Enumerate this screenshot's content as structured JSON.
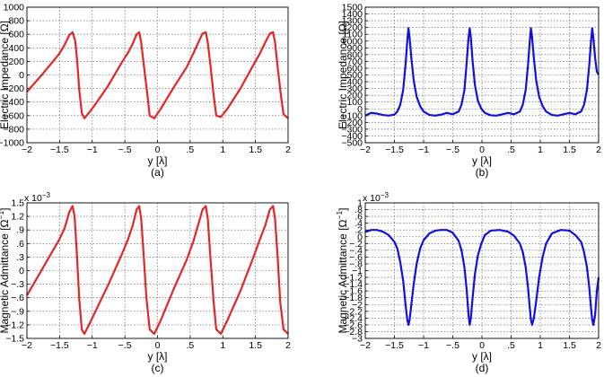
{
  "chart_data": [
    {
      "id": "a",
      "type": "line",
      "caption": "(a)",
      "xlabel": "y [λ]",
      "ylabel": "Electric Impedance [Ω]",
      "ylabel_sup": "",
      "multiplier": "",
      "xlim": [
        -2,
        2
      ],
      "ylim": [
        -1000,
        1000
      ],
      "xticks": [
        -2,
        -1.5,
        -1,
        -0.5,
        0,
        0.5,
        1,
        1.5,
        2
      ],
      "yticks": [
        -1000,
        -800,
        -600,
        -400,
        -200,
        0,
        200,
        400,
        600,
        800,
        1000
      ],
      "grid": true,
      "series": [
        {
          "color": "#e32626",
          "x": [
            -2,
            -1.8,
            -1.6,
            -1.5,
            -1.42,
            -1.35,
            -1.3,
            -1.26,
            -1.23,
            -1.2,
            -1.16,
            -1.12,
            -1.05,
            -0.95,
            -0.75,
            -0.55,
            -0.45,
            -0.38,
            -0.32,
            -0.28,
            -0.25,
            -0.21,
            -0.16,
            -0.12,
            -0.05,
            0.05,
            0.25,
            0.45,
            0.55,
            0.62,
            0.69,
            0.74,
            0.77,
            0.81,
            0.86,
            0.9,
            0.97,
            1.07,
            1.27,
            1.47,
            1.57,
            1.65,
            1.72,
            1.77,
            1.8,
            1.84,
            1.89,
            1.93,
            2
          ],
          "y": [
            -250,
            -30,
            200,
            320,
            450,
            590,
            630,
            500,
            200,
            -200,
            -560,
            -640,
            -560,
            -430,
            -150,
            180,
            330,
            460,
            600,
            630,
            480,
            150,
            -250,
            -600,
            -640,
            -500,
            -180,
            120,
            320,
            470,
            610,
            630,
            480,
            150,
            -300,
            -600,
            -620,
            -500,
            -200,
            150,
            320,
            480,
            610,
            630,
            480,
            120,
            -300,
            -580,
            -640
          ]
        }
      ]
    },
    {
      "id": "b",
      "type": "line",
      "caption": "(b)",
      "xlabel": "y [λ]",
      "ylabel": "Electric Impedance [Ω]",
      "ylabel_sup": "",
      "multiplier": "",
      "xlim": [
        -2,
        2
      ],
      "ylim": [
        -500,
        1500
      ],
      "xticks": [
        -2,
        -1.5,
        -1,
        -0.5,
        0,
        0.5,
        1,
        1.5,
        2
      ],
      "yticks": [
        -500,
        -400,
        -300,
        -200,
        -100,
        0,
        100,
        200,
        300,
        400,
        500,
        600,
        700,
        800,
        900,
        1000,
        1100,
        1200,
        1300,
        1400,
        1500
      ],
      "grid": true,
      "series": [
        {
          "color": "#1010e0",
          "x": [
            -2,
            -1.9,
            -1.8,
            -1.7,
            -1.6,
            -1.5,
            -1.45,
            -1.4,
            -1.35,
            -1.31,
            -1.28,
            -1.26,
            -1.24,
            -1.21,
            -1.17,
            -1.12,
            -1.06,
            -1.0,
            -0.9,
            -0.8,
            -0.7,
            -0.6,
            -0.5,
            -0.4,
            -0.35,
            -0.3,
            -0.26,
            -0.23,
            -0.21,
            -0.19,
            -0.16,
            -0.12,
            -0.07,
            -0.01,
            0.05,
            0.15,
            0.25,
            0.35,
            0.45,
            0.55,
            0.65,
            0.7,
            0.75,
            0.79,
            0.82,
            0.84,
            0.86,
            0.89,
            0.93,
            0.98,
            1.04,
            1.1,
            1.2,
            1.3,
            1.4,
            1.5,
            1.6,
            1.7,
            1.75,
            1.8,
            1.84,
            1.87,
            1.89,
            1.91,
            1.94,
            1.97,
            2
          ],
          "y": [
            -100,
            -60,
            -70,
            -90,
            -100,
            -85,
            -40,
            60,
            280,
            650,
            1000,
            1190,
            1050,
            750,
            420,
            180,
            40,
            -40,
            -90,
            -100,
            -85,
            -60,
            -80,
            -40,
            60,
            280,
            700,
            1050,
            1190,
            1050,
            700,
            350,
            120,
            0,
            -60,
            -95,
            -100,
            -80,
            -60,
            -80,
            -40,
            60,
            280,
            650,
            1000,
            1190,
            1050,
            750,
            420,
            180,
            40,
            -40,
            -90,
            -100,
            -80,
            -60,
            -80,
            -40,
            60,
            280,
            650,
            1000,
            1190,
            1050,
            750,
            550,
            500
          ]
        }
      ]
    },
    {
      "id": "c",
      "type": "line",
      "caption": "(c)",
      "xlabel": "y [λ]",
      "ylabel": "Magnetic Admittance [Ω",
      "ylabel_sup": "−1",
      "ylabel_end": "]",
      "multiplier": "x 10",
      "multiplier_exp": "-3",
      "xlim": [
        -2,
        2
      ],
      "ylim": [
        -1.5,
        1.5
      ],
      "xticks": [
        -2,
        -1.5,
        -1,
        -0.5,
        0,
        0.5,
        1,
        1.5,
        2
      ],
      "yticks": [
        -1.5,
        -1.2,
        -0.9,
        -0.6,
        -0.3,
        0,
        0.3,
        0.6,
        0.9,
        1.2,
        1.5
      ],
      "grid": true,
      "series": [
        {
          "color": "#e32626",
          "x": [
            -2,
            -1.8,
            -1.6,
            -1.5,
            -1.42,
            -1.35,
            -1.3,
            -1.27,
            -1.24,
            -1.2,
            -1.16,
            -1.12,
            -1.05,
            -0.95,
            -0.75,
            -0.55,
            -0.45,
            -0.38,
            -0.32,
            -0.28,
            -0.25,
            -0.21,
            -0.17,
            -0.12,
            -0.05,
            0.05,
            0.25,
            0.45,
            0.55,
            0.62,
            0.69,
            0.74,
            0.77,
            0.81,
            0.86,
            0.9,
            0.97,
            1.07,
            1.27,
            1.47,
            1.57,
            1.65,
            1.72,
            1.77,
            1.8,
            1.84,
            1.88,
            1.93,
            2
          ],
          "y": [
            -0.55,
            -0.05,
            0.45,
            0.7,
            0.95,
            1.3,
            1.43,
            1.2,
            0.5,
            -0.6,
            -1.3,
            -1.4,
            -1.2,
            -0.9,
            -0.3,
            0.35,
            0.7,
            1.0,
            1.35,
            1.43,
            1.15,
            0.3,
            -0.6,
            -1.3,
            -1.4,
            -1.1,
            -0.4,
            0.25,
            0.65,
            1.0,
            1.35,
            1.43,
            1.15,
            0.3,
            -0.7,
            -1.3,
            -1.4,
            -1.1,
            -0.45,
            0.3,
            0.7,
            1.0,
            1.35,
            1.43,
            1.15,
            0.3,
            -0.7,
            -1.3,
            -1.4
          ]
        }
      ]
    },
    {
      "id": "d",
      "type": "line",
      "caption": "(d)",
      "xlabel": "y [λ]",
      "ylabel": "Magnetic Admittance [Ω",
      "ylabel_sup": "−1",
      "ylabel_end": "]",
      "multiplier": "x 10",
      "multiplier_exp": "-3",
      "xlim": [
        -2,
        2
      ],
      "ylim": [
        -3,
        1
      ],
      "xticks": [
        -2,
        -1.5,
        -1,
        -0.5,
        0,
        0.5,
        1,
        1.5,
        2
      ],
      "yticks": [
        -3,
        -2.8,
        -2.6,
        -2.4,
        -2.2,
        -2,
        -1.8,
        -1.6,
        -1.4,
        -1.2,
        -1,
        -0.8,
        -0.6,
        -0.4,
        -0.2,
        0,
        0.2,
        0.4,
        0.6,
        0.8,
        1
      ],
      "grid": true,
      "series": [
        {
          "color": "#1010e0",
          "x": [
            -2,
            -1.9,
            -1.8,
            -1.7,
            -1.6,
            -1.5,
            -1.45,
            -1.4,
            -1.35,
            -1.31,
            -1.28,
            -1.26,
            -1.24,
            -1.21,
            -1.17,
            -1.12,
            -1.06,
            -1.0,
            -0.9,
            -0.8,
            -0.7,
            -0.6,
            -0.5,
            -0.4,
            -0.35,
            -0.3,
            -0.26,
            -0.23,
            -0.21,
            -0.19,
            -0.16,
            -0.12,
            -0.07,
            -0.01,
            0.05,
            0.15,
            0.3,
            0.45,
            0.55,
            0.65,
            0.7,
            0.75,
            0.79,
            0.82,
            0.84,
            0.86,
            0.89,
            0.93,
            0.98,
            1.04,
            1.1,
            1.2,
            1.35,
            1.5,
            1.6,
            1.7,
            1.75,
            1.8,
            1.84,
            1.87,
            1.89,
            1.91,
            1.94,
            1.97,
            2
          ],
          "y": [
            0.14,
            0.2,
            0.2,
            0.15,
            0.05,
            -0.15,
            -0.35,
            -0.75,
            -1.3,
            -2.0,
            -2.45,
            -2.6,
            -2.45,
            -2.0,
            -1.4,
            -0.8,
            -0.35,
            -0.1,
            0.1,
            0.18,
            0.2,
            0.2,
            0.12,
            -0.12,
            -0.4,
            -0.9,
            -1.6,
            -2.3,
            -2.6,
            -2.4,
            -1.8,
            -1.1,
            -0.55,
            -0.2,
            0.05,
            0.18,
            0.2,
            0.15,
            0.03,
            -0.2,
            -0.45,
            -0.9,
            -1.5,
            -2.1,
            -2.45,
            -2.6,
            -2.4,
            -1.9,
            -1.2,
            -0.6,
            -0.2,
            0.1,
            0.2,
            0.18,
            0.05,
            -0.15,
            -0.45,
            -0.9,
            -1.5,
            -2.1,
            -2.45,
            -2.6,
            -2.3,
            -1.6,
            -1.2
          ]
        }
      ]
    }
  ]
}
